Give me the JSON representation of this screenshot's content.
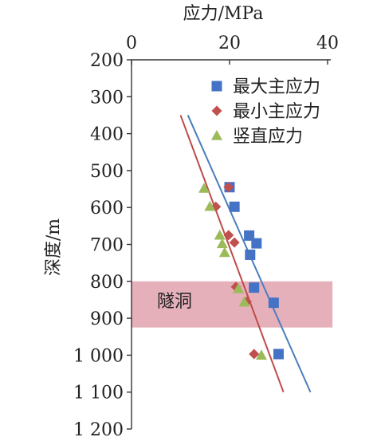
{
  "chart_data": {
    "type": "scatter",
    "xlabel": "应力/MPa",
    "ylabel": "深度/m",
    "xlim": [
      0,
      40
    ],
    "ylim": [
      200,
      1200
    ],
    "x_ticks": [
      0,
      20,
      40
    ],
    "x_tick_labels": [
      "0",
      "20",
      "40"
    ],
    "y_ticks": [
      200,
      300,
      400,
      500,
      600,
      700,
      800,
      900,
      1000,
      1100,
      1200
    ],
    "y_tick_labels": [
      "200",
      "300",
      "400",
      "500",
      "600",
      "700",
      "800",
      "900",
      "1 000",
      "1 100",
      "1 200"
    ],
    "y_axis_reversed": true,
    "x_axis_position": "top",
    "grid": false,
    "legend_position": "top-right",
    "series": [
      {
        "name": "最大主应力",
        "marker": "square",
        "color": "#4472C4",
        "points": [
          {
            "x": 20.0,
            "y": 545
          },
          {
            "x": 21.0,
            "y": 598
          },
          {
            "x": 24.0,
            "y": 676
          },
          {
            "x": 25.5,
            "y": 697
          },
          {
            "x": 24.2,
            "y": 728
          },
          {
            "x": 25.0,
            "y": 817
          },
          {
            "x": 29.0,
            "y": 858
          },
          {
            "x": 30.0,
            "y": 997
          }
        ]
      },
      {
        "name": "最小主应力",
        "marker": "diamond",
        "color": "#C0504D",
        "points": [
          {
            "x": 19.8,
            "y": 545
          },
          {
            "x": 17.2,
            "y": 598
          },
          {
            "x": 19.8,
            "y": 675
          },
          {
            "x": 21.0,
            "y": 695
          },
          {
            "x": 21.3,
            "y": 815
          },
          {
            "x": 23.5,
            "y": 855
          },
          {
            "x": 25.0,
            "y": 997
          }
        ]
      },
      {
        "name": "竖直应力",
        "marker": "triangle",
        "color": "#9BBB59",
        "points": [
          {
            "x": 14.8,
            "y": 548
          },
          {
            "x": 16.0,
            "y": 597
          },
          {
            "x": 18.0,
            "y": 675
          },
          {
            "x": 18.5,
            "y": 698
          },
          {
            "x": 19.0,
            "y": 722
          },
          {
            "x": 21.8,
            "y": 820
          },
          {
            "x": 23.0,
            "y": 856
          },
          {
            "x": 26.5,
            "y": 1000
          }
        ]
      }
    ],
    "trendlines": [
      {
        "series": "最大主应力",
        "color": "#4A7EBB",
        "from": {
          "x": 11.5,
          "y": 350
        },
        "to": {
          "x": 36.5,
          "y": 1100
        }
      },
      {
        "series": "最小主应力",
        "color": "#BE4B48",
        "from": {
          "x": 10.0,
          "y": 350
        },
        "to": {
          "x": 31.0,
          "y": 1100
        }
      }
    ],
    "annotations": [
      {
        "label": "隧洞",
        "region": {
          "x0": 0,
          "x1": 41,
          "y0": 800,
          "y1": 925
        },
        "color": "#E6B0BB"
      }
    ]
  }
}
